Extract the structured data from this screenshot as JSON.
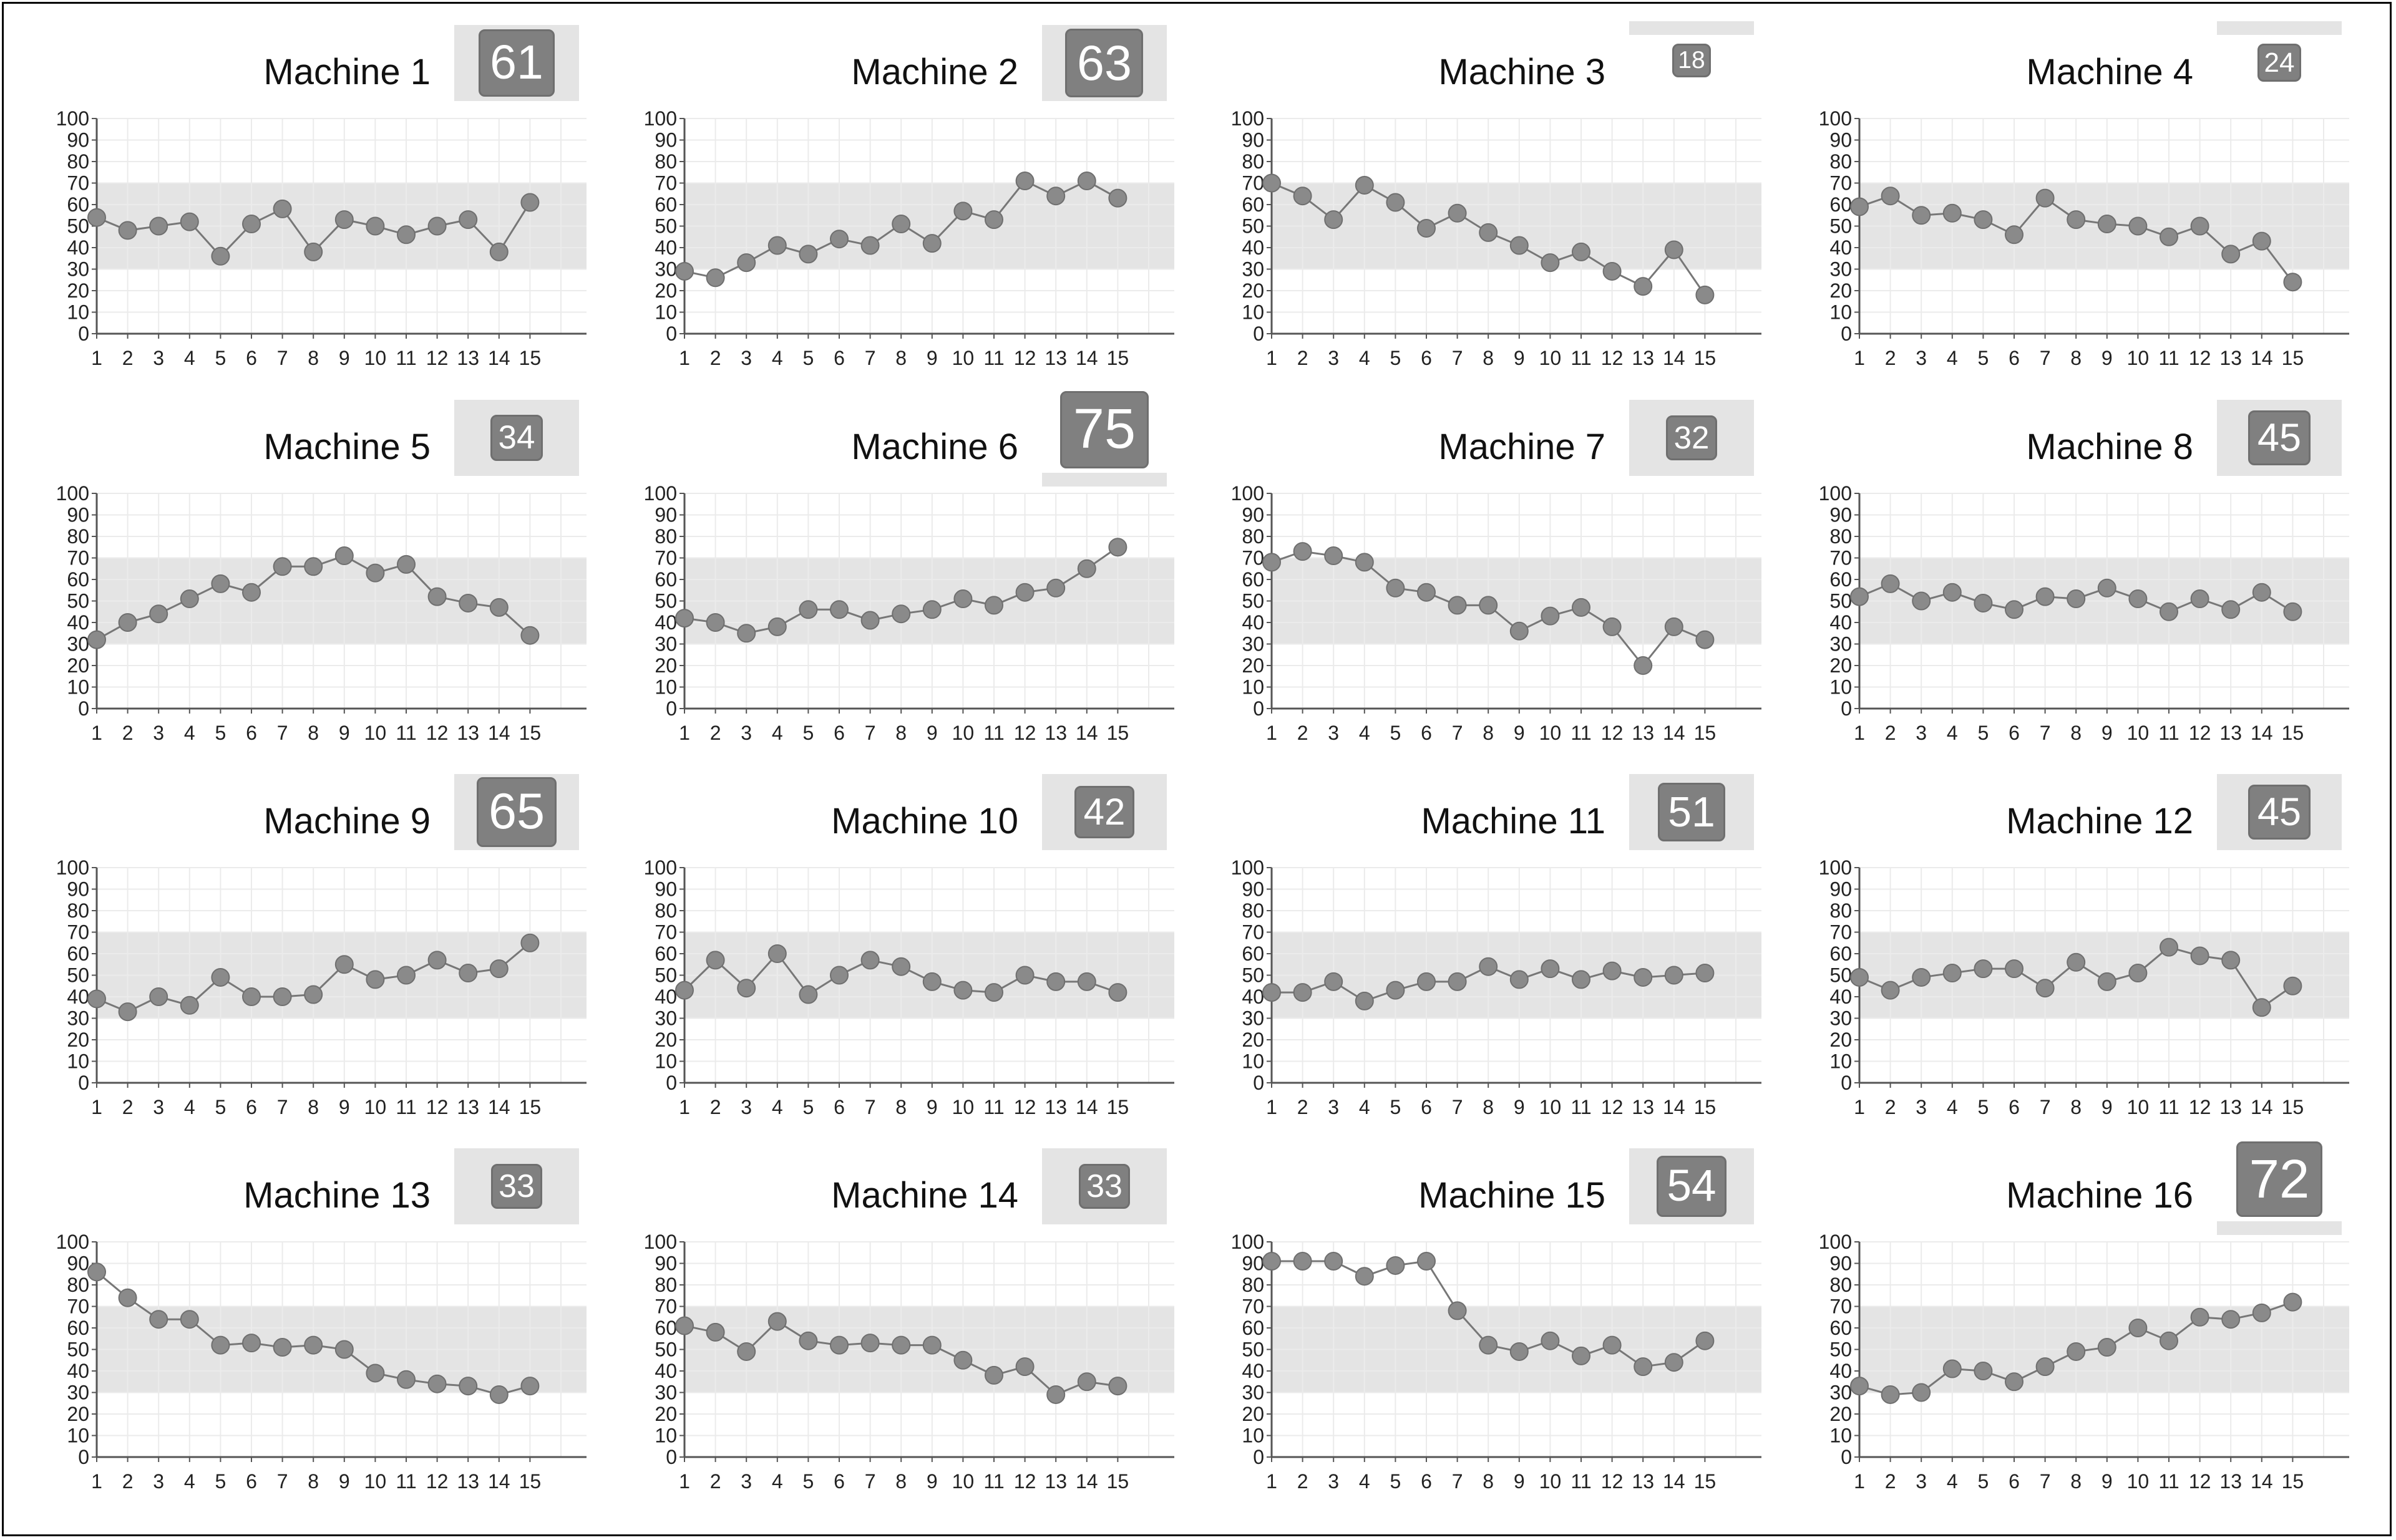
{
  "colors": {
    "band": "#e4e4e4",
    "grid": "#ebebeb",
    "axis": "#555555",
    "line": "#777777",
    "marker": "#8a8a8a",
    "badge": "#808080"
  },
  "control_band": [
    30,
    70
  ],
  "chart_data": [
    {
      "type": "line",
      "title": "Machine 1",
      "latest": "61",
      "x": [
        1,
        2,
        3,
        4,
        5,
        6,
        7,
        8,
        9,
        10,
        11,
        12,
        13,
        14,
        15
      ],
      "values": [
        54,
        48,
        50,
        52,
        36,
        51,
        58,
        38,
        53,
        50,
        46,
        50,
        53,
        38,
        61
      ],
      "ylim": [
        0,
        100
      ]
    },
    {
      "type": "line",
      "title": "Machine 2",
      "latest": "63",
      "x": [
        1,
        2,
        3,
        4,
        5,
        6,
        7,
        8,
        9,
        10,
        11,
        12,
        13,
        14,
        15
      ],
      "values": [
        29,
        26,
        33,
        41,
        37,
        44,
        41,
        51,
        42,
        57,
        53,
        71,
        64,
        71,
        63
      ],
      "ylim": [
        0,
        100
      ]
    },
    {
      "type": "line",
      "title": "Machine 3",
      "latest": "18",
      "x": [
        1,
        2,
        3,
        4,
        5,
        6,
        7,
        8,
        9,
        10,
        11,
        12,
        13,
        14,
        15
      ],
      "values": [
        70,
        64,
        53,
        69,
        61,
        49,
        56,
        47,
        41,
        33,
        38,
        29,
        22,
        39,
        18
      ],
      "ylim": [
        0,
        100
      ]
    },
    {
      "type": "line",
      "title": "Machine 4",
      "latest": "24",
      "x": [
        1,
        2,
        3,
        4,
        5,
        6,
        7,
        8,
        9,
        10,
        11,
        12,
        13,
        14,
        15
      ],
      "values": [
        59,
        64,
        55,
        56,
        53,
        46,
        63,
        53,
        51,
        50,
        45,
        50,
        37,
        43,
        24
      ],
      "ylim": [
        0,
        100
      ]
    },
    {
      "type": "line",
      "title": "Machine 5",
      "latest": "34",
      "x": [
        1,
        2,
        3,
        4,
        5,
        6,
        7,
        8,
        9,
        10,
        11,
        12,
        13,
        14,
        15
      ],
      "values": [
        32,
        40,
        44,
        51,
        58,
        54,
        66,
        66,
        71,
        63,
        67,
        52,
        49,
        47,
        34
      ],
      "ylim": [
        0,
        100
      ]
    },
    {
      "type": "line",
      "title": "Machine 6",
      "latest": "75",
      "x": [
        1,
        2,
        3,
        4,
        5,
        6,
        7,
        8,
        9,
        10,
        11,
        12,
        13,
        14,
        15
      ],
      "values": [
        42,
        40,
        35,
        38,
        46,
        46,
        41,
        44,
        46,
        51,
        48,
        54,
        56,
        65,
        75
      ],
      "ylim": [
        0,
        100
      ]
    },
    {
      "type": "line",
      "title": "Machine 7",
      "latest": "32",
      "x": [
        1,
        2,
        3,
        4,
        5,
        6,
        7,
        8,
        9,
        10,
        11,
        12,
        13,
        14,
        15
      ],
      "values": [
        68,
        73,
        71,
        68,
        56,
        54,
        48,
        48,
        36,
        43,
        47,
        38,
        20,
        38,
        32
      ],
      "ylim": [
        0,
        100
      ]
    },
    {
      "type": "line",
      "title": "Machine 8",
      "latest": "45",
      "x": [
        1,
        2,
        3,
        4,
        5,
        6,
        7,
        8,
        9,
        10,
        11,
        12,
        13,
        14,
        15
      ],
      "values": [
        52,
        58,
        50,
        54,
        49,
        46,
        52,
        51,
        56,
        51,
        45,
        51,
        46,
        54,
        45
      ],
      "ylim": [
        0,
        100
      ]
    },
    {
      "type": "line",
      "title": "Machine 9",
      "latest": "65",
      "x": [
        1,
        2,
        3,
        4,
        5,
        6,
        7,
        8,
        9,
        10,
        11,
        12,
        13,
        14,
        15
      ],
      "values": [
        39,
        33,
        40,
        36,
        49,
        40,
        40,
        41,
        55,
        48,
        50,
        57,
        51,
        53,
        65
      ],
      "ylim": [
        0,
        100
      ]
    },
    {
      "type": "line",
      "title": "Machine 10",
      "latest": "42",
      "x": [
        1,
        2,
        3,
        4,
        5,
        6,
        7,
        8,
        9,
        10,
        11,
        12,
        13,
        14,
        15
      ],
      "values": [
        43,
        57,
        44,
        60,
        41,
        50,
        57,
        54,
        47,
        43,
        42,
        50,
        47,
        47,
        42
      ],
      "ylim": [
        0,
        100
      ]
    },
    {
      "type": "line",
      "title": "Machine 11",
      "latest": "51",
      "x": [
        1,
        2,
        3,
        4,
        5,
        6,
        7,
        8,
        9,
        10,
        11,
        12,
        13,
        14,
        15
      ],
      "values": [
        42,
        42,
        47,
        38,
        43,
        47,
        47,
        54,
        48,
        53,
        48,
        52,
        49,
        50,
        51
      ],
      "ylim": [
        0,
        100
      ]
    },
    {
      "type": "line",
      "title": "Machine 12",
      "latest": "45",
      "x": [
        1,
        2,
        3,
        4,
        5,
        6,
        7,
        8,
        9,
        10,
        11,
        12,
        13,
        14,
        15
      ],
      "values": [
        49,
        43,
        49,
        51,
        53,
        53,
        44,
        56,
        47,
        51,
        63,
        59,
        57,
        35,
        45
      ],
      "ylim": [
        0,
        100
      ]
    },
    {
      "type": "line",
      "title": "Machine 13",
      "latest": "33",
      "x": [
        1,
        2,
        3,
        4,
        5,
        6,
        7,
        8,
        9,
        10,
        11,
        12,
        13,
        14,
        15
      ],
      "values": [
        86,
        74,
        64,
        64,
        52,
        53,
        51,
        52,
        50,
        39,
        36,
        34,
        33,
        29,
        33
      ],
      "ylim": [
        0,
        100
      ]
    },
    {
      "type": "line",
      "title": "Machine 14",
      "latest": "33",
      "x": [
        1,
        2,
        3,
        4,
        5,
        6,
        7,
        8,
        9,
        10,
        11,
        12,
        13,
        14,
        15
      ],
      "values": [
        61,
        58,
        49,
        63,
        54,
        52,
        53,
        52,
        52,
        45,
        38,
        42,
        29,
        35,
        33
      ],
      "ylim": [
        0,
        100
      ]
    },
    {
      "type": "line",
      "title": "Machine 15",
      "latest": "54",
      "x": [
        1,
        2,
        3,
        4,
        5,
        6,
        7,
        8,
        9,
        10,
        11,
        12,
        13,
        14,
        15
      ],
      "values": [
        91,
        91,
        91,
        84,
        89,
        91,
        68,
        52,
        49,
        54,
        47,
        52,
        42,
        44,
        54
      ],
      "ylim": [
        0,
        100
      ]
    },
    {
      "type": "line",
      "title": "Machine 16",
      "latest": "72",
      "x": [
        1,
        2,
        3,
        4,
        5,
        6,
        7,
        8,
        9,
        10,
        11,
        12,
        13,
        14,
        15
      ],
      "values": [
        33,
        29,
        30,
        41,
        40,
        35,
        42,
        49,
        51,
        60,
        54,
        65,
        64,
        67,
        72
      ],
      "ylim": [
        0,
        100
      ]
    }
  ]
}
